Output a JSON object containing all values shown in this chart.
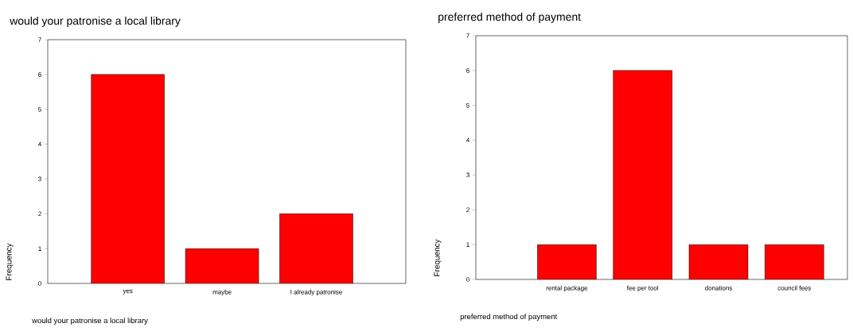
{
  "chart_data": [
    {
      "type": "bar",
      "title": "would your patronise a local library",
      "xlabel": "would your patronise a local library",
      "ylabel": "Frequency",
      "categories": [
        "yes",
        "maybe",
        "I already patronise"
      ],
      "values": [
        6,
        1,
        2
      ],
      "color": "#ff0000",
      "ylim": [
        0,
        7
      ],
      "yticks": [
        0,
        1,
        2,
        3,
        4,
        5,
        6,
        7
      ]
    },
    {
      "type": "bar",
      "title": "preferred method of payment",
      "xlabel": "preferred method of payment",
      "ylabel": "Frequency",
      "categories": [
        "rental package",
        "fee per tool",
        "donations",
        "council fees"
      ],
      "values": [
        1,
        6,
        1,
        1
      ],
      "color": "#ff0000",
      "ylim": [
        0,
        7
      ],
      "yticks": [
        0,
        1,
        2,
        3,
        4,
        5,
        6,
        7
      ]
    }
  ]
}
